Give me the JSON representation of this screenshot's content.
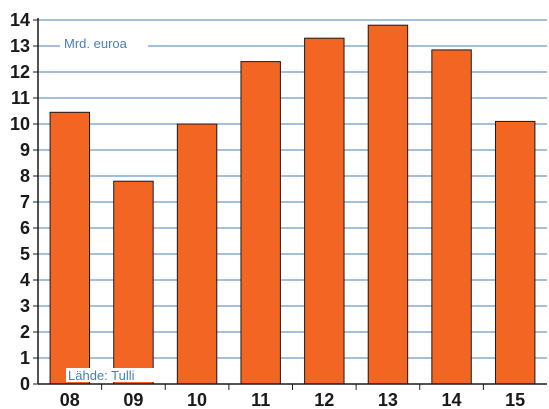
{
  "chart_data": {
    "type": "bar",
    "categories": [
      "08",
      "09",
      "10",
      "11",
      "12",
      "13",
      "14",
      "15"
    ],
    "values": [
      10.45,
      7.8,
      10.0,
      12.4,
      13.3,
      13.8,
      12.85,
      10.1
    ],
    "ylim": [
      0,
      14
    ],
    "yticks": [
      0,
      1,
      2,
      3,
      4,
      5,
      6,
      7,
      8,
      9,
      10,
      11,
      12,
      13,
      14
    ],
    "unit_label": "Mrd. euroa",
    "source_label": "Lähde: Tulli",
    "grid": true,
    "colors": {
      "bar": "#f26522",
      "bar_outline": "#1a1a1a",
      "grid": "#4a7fb5",
      "axis": "#1a1a1a"
    }
  }
}
